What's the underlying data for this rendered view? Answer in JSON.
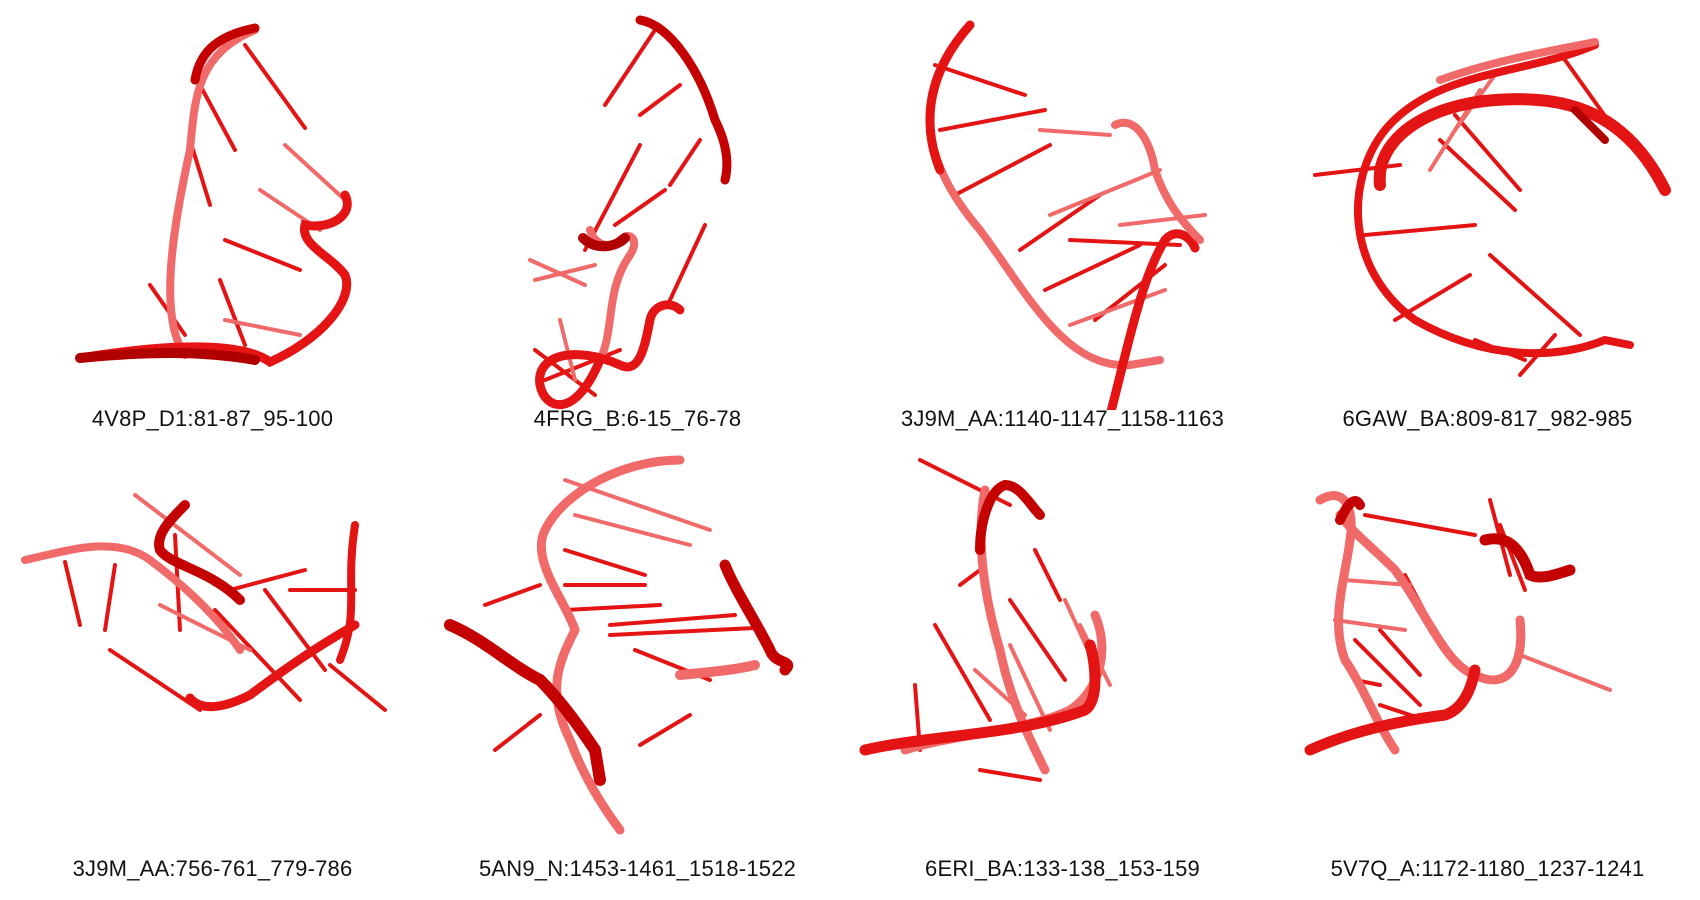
{
  "colors": {
    "ribbon": "#e41414",
    "ribbon_dark": "#9e0000",
    "ribbon_faded": "#f06a6a",
    "background": "#ffffff"
  },
  "panels": [
    {
      "label": "4V8P_D1:81-87_95-100"
    },
    {
      "label": "4FRG_B:6-15_76-78"
    },
    {
      "label": "3J9M_AA:1140-1147_1158-1163"
    },
    {
      "label": "6GAW_BA:809-817_982-985"
    },
    {
      "label": "3J9M_AA:756-761_779-786"
    },
    {
      "label": "5AN9_N:1453-1461_1518-1522"
    },
    {
      "label": "6ERI_BA:133-138_153-159"
    },
    {
      "label": "5V7Q_A:1172-1180_1237-1241"
    }
  ]
}
